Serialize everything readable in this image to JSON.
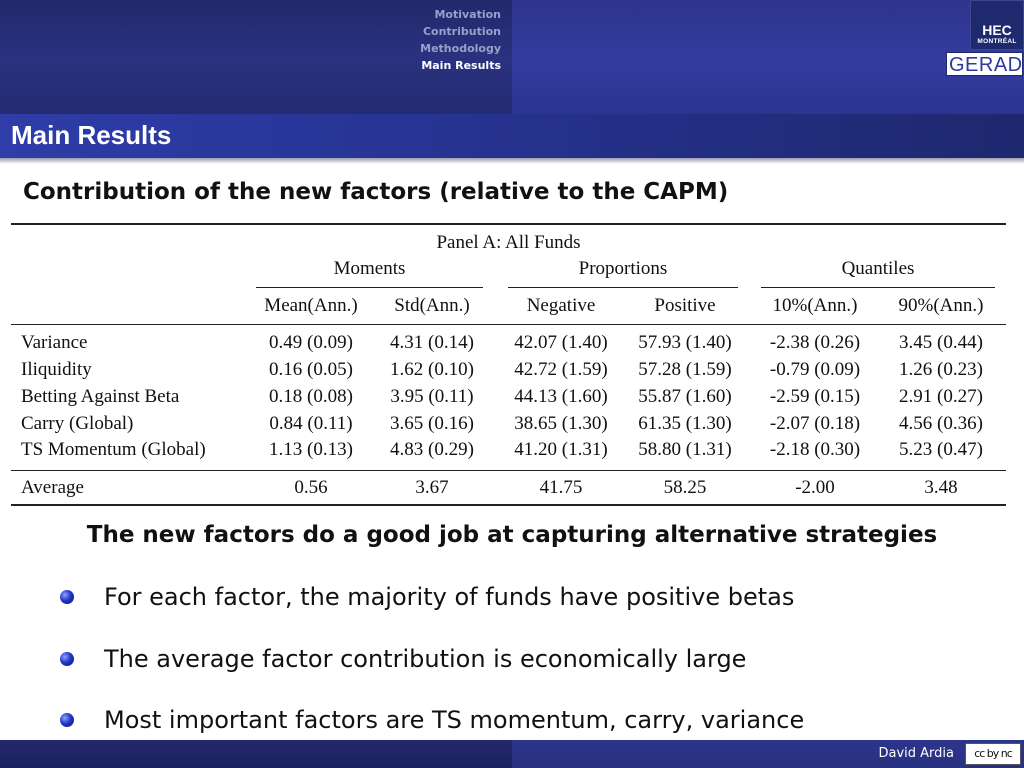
{
  "nav": {
    "items": [
      {
        "label": "Motivation",
        "active": false
      },
      {
        "label": "Contribution",
        "active": false
      },
      {
        "label": "Methodology",
        "active": false
      },
      {
        "label": "Main  Results",
        "active": true
      }
    ]
  },
  "logos": {
    "hec_line1": "HEC",
    "hec_line2": "MONTRÉAL",
    "gerad": "GERAD"
  },
  "frame": {
    "title": "Main Results",
    "subtitle": "Contribution of the new factors (relative to the CAPM)"
  },
  "table": {
    "panel": "Panel A: All Funds",
    "groups": [
      "Moments",
      "Proportions",
      "Quantiles"
    ],
    "columns": [
      "Mean(Ann.)",
      "Std(Ann.)",
      "Negative",
      "Positive",
      "10%(Ann.)",
      "90%(Ann.)"
    ],
    "rows": [
      {
        "label": "Variance",
        "cells": [
          "0.49 (0.09)",
          "4.31 (0.14)",
          "42.07 (1.40)",
          "57.93 (1.40)",
          "-2.38 (0.26)",
          "3.45 (0.44)"
        ]
      },
      {
        "label": "Iliquidity",
        "cells": [
          "0.16 (0.05)",
          "1.62 (0.10)",
          "42.72 (1.59)",
          "57.28 (1.59)",
          "-0.79 (0.09)",
          "1.26 (0.23)"
        ]
      },
      {
        "label": "Betting Against Beta",
        "cells": [
          "0.18 (0.08)",
          "3.95 (0.11)",
          "44.13 (1.60)",
          "55.87 (1.60)",
          "-2.59 (0.15)",
          "2.91 (0.27)"
        ]
      },
      {
        "label": "Carry (Global)",
        "cells": [
          "0.84 (0.11)",
          "3.65 (0.16)",
          "38.65 (1.30)",
          "61.35 (1.30)",
          "-2.07 (0.18)",
          "4.56 (0.36)"
        ]
      },
      {
        "label": "TS Momentum (Global)",
        "cells": [
          "1.13 (0.13)",
          "4.83 (0.29)",
          "41.20 (1.31)",
          "58.80 (1.31)",
          "-2.18 (0.30)",
          "5.23 (0.47)"
        ]
      }
    ],
    "average": {
      "label": "Average",
      "cells": [
        "0.56",
        "3.67",
        "41.75",
        "58.25",
        "-2.00",
        "3.48"
      ]
    }
  },
  "body": {
    "headline": "The new factors do a good job at capturing alternative strategies",
    "bullets": [
      "For each factor, the majority of funds have positive betas",
      "The average factor contribution is economically large",
      "Most important factors are TS momentum, carry, variance"
    ]
  },
  "footer": {
    "author": "David Ardia",
    "license_badge": "cc by nc"
  }
}
